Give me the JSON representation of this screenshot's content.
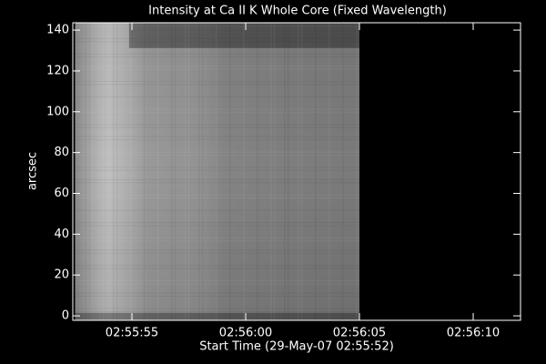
{
  "chart_data": {
    "type": "image",
    "title": "Intensity at Ca II K Whole Core (Fixed Wavelength)",
    "x_label": "Start Time (29-May-07 02:55:52)",
    "y_label": "arcsec",
    "xlim": [
      0.4,
      20.08
    ],
    "ylim": [
      -2.2,
      143.6
    ],
    "xticks": [
      {
        "value": 3,
        "label": "02:55:55"
      },
      {
        "value": 8,
        "label": "02:56:00"
      },
      {
        "value": 13,
        "label": "02:56:05"
      },
      {
        "value": 18,
        "label": "02:56:10"
      }
    ],
    "yticks": [
      0,
      20,
      40,
      60,
      80,
      100,
      120,
      140
    ],
    "image_x": [
      0.5,
      13.0
    ],
    "image_y": [
      -2.2,
      143.6
    ]
  }
}
